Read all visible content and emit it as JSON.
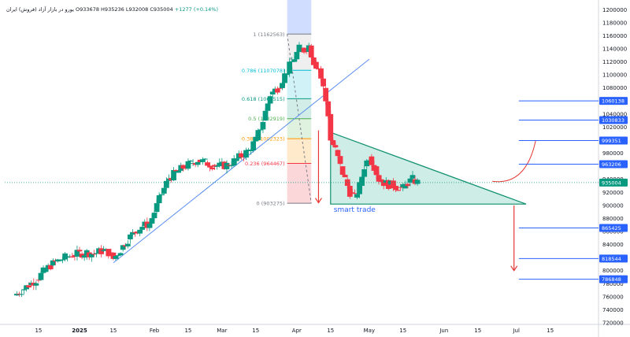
{
  "header": {
    "symbol_title": "یورو در بازار آزاد (فروش) ایران",
    "open": "O933678",
    "high": "H935236",
    "low": "L932008",
    "close": "C935004",
    "change": "+1277 (+0.14%)"
  },
  "colors": {
    "up": "#089981",
    "down": "#f23645",
    "trendline": "#5b8def",
    "triangle_fill": "#a8dfd4",
    "triangle_stroke": "#0e8f6e",
    "price_tag": "#2962ff",
    "current_price_tag": "#089981",
    "arrow": "#e53935"
  },
  "chart_data": {
    "type": "candlestick",
    "y_axis": {
      "range": [
        720000,
        1210000
      ],
      "ticks": [
        1200000,
        1180000,
        1160000,
        1140000,
        1120000,
        1100000,
        1080000,
        1060000,
        1040000,
        1020000,
        1000000,
        980000,
        960000,
        940000,
        920000,
        900000,
        880000,
        860000,
        840000,
        820000,
        800000,
        780000,
        760000,
        740000,
        720000
      ]
    },
    "x_axis": {
      "ticks": [
        {
          "label": "15",
          "day": -17
        },
        {
          "label": "2025",
          "day": 0
        },
        {
          "label": "15",
          "day": 14
        },
        {
          "label": "Feb",
          "day": 31
        },
        {
          "label": "15",
          "day": 45
        },
        {
          "label": "Mar",
          "day": 59
        },
        {
          "label": "15",
          "day": 73
        },
        {
          "label": "Apr",
          "day": 90
        },
        {
          "label": "15",
          "day": 104
        },
        {
          "label": "May",
          "day": 120
        },
        {
          "label": "15",
          "day": 134
        },
        {
          "label": "Jun",
          "day": 151
        },
        {
          "label": "15",
          "day": 165
        },
        {
          "label": "Jul",
          "day": 181
        },
        {
          "label": "15",
          "day": 195
        }
      ]
    },
    "series_close": [
      [
        -27,
        762000
      ],
      [
        -24,
        770000
      ],
      [
        -21,
        778000
      ],
      [
        -18,
        786000
      ],
      [
        -15,
        798000
      ],
      [
        -12,
        808000
      ],
      [
        -9,
        815000
      ],
      [
        -6,
        820000
      ],
      [
        -3,
        824000
      ],
      [
        0,
        826000
      ],
      [
        3,
        828000
      ],
      [
        6,
        826000
      ],
      [
        9,
        830000
      ],
      [
        12,
        828000
      ],
      [
        14,
        818000
      ],
      [
        17,
        832000
      ],
      [
        20,
        848000
      ],
      [
        23,
        860000
      ],
      [
        26,
        868000
      ],
      [
        29,
        872000
      ],
      [
        31,
        890000
      ],
      [
        34,
        918000
      ],
      [
        37,
        942000
      ],
      [
        40,
        950000
      ],
      [
        43,
        958000
      ],
      [
        46,
        964000
      ],
      [
        49,
        970000
      ],
      [
        52,
        966000
      ],
      [
        55,
        962000
      ],
      [
        58,
        960000
      ],
      [
        61,
        962000
      ],
      [
        64,
        968000
      ],
      [
        67,
        976000
      ],
      [
        70,
        984000
      ],
      [
        73,
        1000000
      ],
      [
        76,
        1030000
      ],
      [
        79,
        1070000
      ],
      [
        82,
        1080000
      ],
      [
        85,
        1100000
      ],
      [
        88,
        1120000
      ],
      [
        91,
        1140000
      ],
      [
        93,
        1138000
      ],
      [
        95,
        1145000
      ],
      [
        97,
        1120000
      ],
      [
        99,
        1110000
      ],
      [
        101,
        1080000
      ],
      [
        103,
        1040000
      ],
      [
        104,
        1000000
      ],
      [
        106,
        985000
      ],
      [
        108,
        960000
      ],
      [
        110,
        940000
      ],
      [
        112,
        920000
      ],
      [
        114,
        912000
      ],
      [
        116,
        930000
      ],
      [
        118,
        960000
      ],
      [
        120,
        975000
      ],
      [
        122,
        960000
      ],
      [
        124,
        940000
      ],
      [
        126,
        935000
      ],
      [
        128,
        932000
      ],
      [
        130,
        930000
      ],
      [
        132,
        928000
      ],
      [
        134,
        926000
      ],
      [
        136,
        935000
      ],
      [
        138,
        940000
      ],
      [
        140,
        935000
      ]
    ],
    "fibonacci": [
      {
        "ratio": "1",
        "price": 1162563,
        "label": "1 (1162563)",
        "color": "#787b86"
      },
      {
        "ratio": "0.786",
        "price": 1107078,
        "label": "0.786 (1107078)",
        "color": "#00bcd4"
      },
      {
        "ratio": "0.618",
        "price": 1063515,
        "label": "0.618 (1063515)",
        "color": "#089981"
      },
      {
        "ratio": "0.5",
        "price": 1032919,
        "label": "0.5 (1032919)",
        "color": "#4caf50"
      },
      {
        "ratio": "0.382",
        "price": 1002323,
        "label": "0.382 (1002323)",
        "color": "#ff9800"
      },
      {
        "ratio": "0.236",
        "price": 964467,
        "label": "0.236 (964467)",
        "color": "#f23645"
      },
      {
        "ratio": "0",
        "price": 903275,
        "label": "0 (903275)",
        "color": "#787b86"
      }
    ],
    "price_levels": [
      {
        "label": "1060138",
        "price": 1060138
      },
      {
        "label": "1030833",
        "price": 1030833
      },
      {
        "label": "999351",
        "price": 999351
      },
      {
        "label": "963206",
        "price": 963206
      },
      {
        "label": "865425",
        "price": 865425
      },
      {
        "label": "818544",
        "price": 818544
      },
      {
        "label": "786848",
        "price": 786848
      }
    ],
    "current_price": {
      "label": "935004",
      "price": 935004
    },
    "annotations": [
      {
        "text": "smart trade"
      }
    ]
  }
}
